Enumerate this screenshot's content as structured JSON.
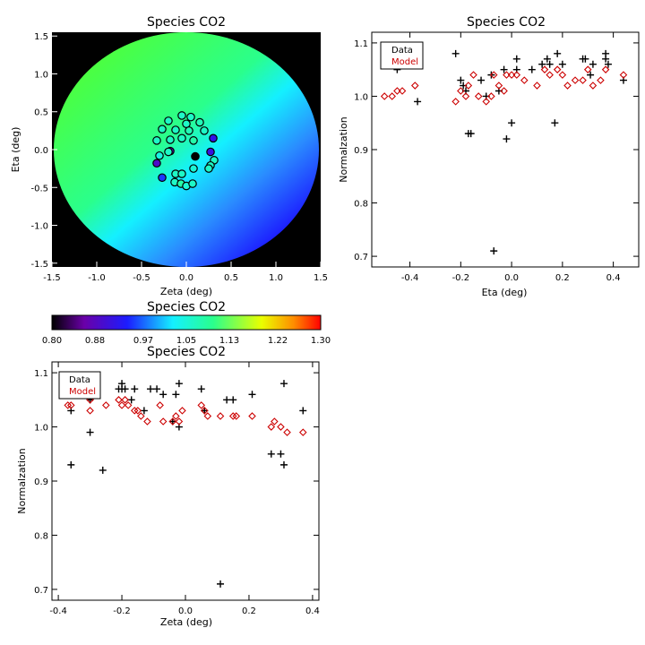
{
  "panels": {
    "map": {
      "title": "Species CO2",
      "xlabel": "Zeta (deg)",
      "ylabel": "Eta (deg)",
      "xlim": [
        -1.5,
        1.5
      ],
      "ylim": [
        -1.55,
        1.55
      ],
      "xticks": [
        "-1.5",
        "-1.0",
        "-0.5",
        "0.0",
        "0.5",
        "1.0",
        "1.5"
      ],
      "yticks": [
        "-1.5",
        "-1.0",
        "-0.5",
        "0.0",
        "0.5",
        "1.0",
        "1.5"
      ],
      "background": "#000000",
      "field_colors": [
        "#1c1cff",
        "#2a8cff",
        "#14f0ff",
        "#2aff8c",
        "#4dff3d"
      ]
    },
    "colorbar": {
      "title": "Species CO2",
      "ticks": [
        "0.80",
        "0.88",
        "0.97",
        "1.05",
        "1.13",
        "1.22",
        "1.30"
      ],
      "range": [
        0.8,
        1.3
      ]
    },
    "eta_scatter": {
      "title": "Species CO2",
      "xlabel": "Eta (deg)",
      "ylabel": "Normalzation",
      "xlim": [
        -0.55,
        0.5
      ],
      "ylim": [
        0.68,
        1.12
      ],
      "xticks": [
        "-0.4",
        "-0.2",
        "0.0",
        "0.2",
        "0.4"
      ],
      "yticks": [
        "0.7",
        "0.8",
        "0.9",
        "1.0",
        "1.1"
      ],
      "legend": {
        "data": "Data",
        "model": "Model",
        "placement": "top-left"
      }
    },
    "zeta_scatter": {
      "title": "Species CO2",
      "xlabel": "Zeta (deg)",
      "ylabel": "Normalzation",
      "xlim": [
        -0.42,
        0.42
      ],
      "ylim": [
        0.68,
        1.12
      ],
      "xticks": [
        "-0.4",
        "-0.2",
        "0.0",
        "0.2",
        "0.4"
      ],
      "yticks": [
        "0.7",
        "0.8",
        "0.9",
        "1.0",
        "1.1"
      ],
      "legend": {
        "data": "Data",
        "model": "Model",
        "placement": "top-left"
      }
    }
  },
  "chart_data": [
    {
      "type": "heatmap",
      "title": "Species CO2",
      "xlabel": "Zeta (deg)",
      "ylabel": "Eta (deg)",
      "xlim": [
        -1.5,
        1.5
      ],
      "ylim": [
        -1.55,
        1.55
      ],
      "colorscale_range": [
        0.8,
        1.3
      ],
      "points": [
        {
          "zeta": -0.05,
          "eta": 0.45,
          "value": 1.06
        },
        {
          "zeta": 0.05,
          "eta": 0.43,
          "value": 1.06
        },
        {
          "zeta": -0.2,
          "eta": 0.38,
          "value": 1.06
        },
        {
          "zeta": 0.15,
          "eta": 0.36,
          "value": 1.07
        },
        {
          "zeta": -0.27,
          "eta": 0.27,
          "value": 1.06
        },
        {
          "zeta": -0.12,
          "eta": 0.26,
          "value": 1.06
        },
        {
          "zeta": 0.0,
          "eta": 0.34,
          "value": 1.06
        },
        {
          "zeta": 0.03,
          "eta": 0.25,
          "value": 1.07
        },
        {
          "zeta": -0.18,
          "eta": 0.13,
          "value": 1.06
        },
        {
          "zeta": -0.05,
          "eta": 0.15,
          "value": 1.06
        },
        {
          "zeta": 0.2,
          "eta": 0.25,
          "value": 1.06
        },
        {
          "zeta": 0.08,
          "eta": 0.12,
          "value": 1.08
        },
        {
          "zeta": -0.33,
          "eta": 0.12,
          "value": 1.06
        },
        {
          "zeta": -0.3,
          "eta": -0.08,
          "value": 1.04
        },
        {
          "zeta": -0.18,
          "eta": -0.02,
          "value": 0.88
        },
        {
          "zeta": 0.3,
          "eta": 0.15,
          "value": 0.92
        },
        {
          "zeta": -0.2,
          "eta": -0.03,
          "value": 1.06
        },
        {
          "zeta": 0.27,
          "eta": -0.03,
          "value": 0.91
        },
        {
          "zeta": 0.1,
          "eta": -0.09,
          "value": 0.71
        },
        {
          "zeta": 0.31,
          "eta": -0.14,
          "value": 1.06
        },
        {
          "zeta": -0.33,
          "eta": -0.18,
          "value": 0.89
        },
        {
          "zeta": 0.27,
          "eta": -0.21,
          "value": 1.06
        },
        {
          "zeta": -0.27,
          "eta": -0.37,
          "value": 0.95
        },
        {
          "zeta": -0.12,
          "eta": -0.32,
          "value": 1.06
        },
        {
          "zeta": -0.05,
          "eta": -0.32,
          "value": 1.06
        },
        {
          "zeta": 0.08,
          "eta": -0.25,
          "value": 1.05
        },
        {
          "zeta": 0.25,
          "eta": -0.25,
          "value": 1.06
        },
        {
          "zeta": -0.13,
          "eta": -0.43,
          "value": 1.06
        },
        {
          "zeta": -0.06,
          "eta": -0.45,
          "value": 1.08
        },
        {
          "zeta": 0.0,
          "eta": -0.48,
          "value": 1.05
        },
        {
          "zeta": 0.07,
          "eta": -0.45,
          "value": 1.06
        }
      ]
    },
    {
      "type": "scatter",
      "title": "Species CO2",
      "xlabel": "Eta (deg)",
      "ylabel": "Normalzation",
      "xlim": [
        -0.55,
        0.5
      ],
      "ylim": [
        0.68,
        1.12
      ],
      "series": [
        {
          "name": "Data",
          "color": "#000000",
          "marker": "plus",
          "x": [
            -0.48,
            -0.45,
            -0.43,
            -0.42,
            -0.37,
            -0.22,
            -0.2,
            -0.19,
            -0.18,
            -0.17,
            -0.16,
            -0.12,
            -0.1,
            -0.08,
            -0.07,
            -0.05,
            -0.03,
            -0.02,
            0.0,
            0.02,
            0.02,
            0.08,
            0.12,
            0.14,
            0.15,
            0.17,
            0.18,
            0.2,
            0.28,
            0.29,
            0.31,
            0.32,
            0.37,
            0.37,
            0.38,
            0.44
          ],
          "y": [
            1.08,
            1.05,
            1.07,
            1.07,
            0.99,
            1.08,
            1.03,
            1.02,
            1.01,
            0.93,
            0.93,
            1.03,
            1.0,
            1.04,
            0.71,
            1.01,
            1.05,
            0.92,
            0.95,
            1.07,
            1.05,
            1.05,
            1.06,
            1.07,
            1.06,
            0.95,
            1.08,
            1.06,
            1.07,
            1.07,
            1.04,
            1.06,
            1.07,
            1.08,
            1.06,
            1.03
          ]
        },
        {
          "name": "Model",
          "color": "#cc0000",
          "marker": "diamond",
          "x": [
            -0.5,
            -0.47,
            -0.45,
            -0.43,
            -0.38,
            -0.22,
            -0.2,
            -0.18,
            -0.17,
            -0.15,
            -0.13,
            -0.1,
            -0.08,
            -0.07,
            -0.05,
            -0.03,
            -0.02,
            0.0,
            0.02,
            0.05,
            0.1,
            0.13,
            0.15,
            0.18,
            0.2,
            0.22,
            0.25,
            0.28,
            0.3,
            0.32,
            0.35,
            0.37,
            0.44
          ],
          "y": [
            1.0,
            1.0,
            1.01,
            1.01,
            1.02,
            0.99,
            1.01,
            1.0,
            1.02,
            1.04,
            1.0,
            0.99,
            1.0,
            1.04,
            1.02,
            1.01,
            1.04,
            1.04,
            1.04,
            1.03,
            1.02,
            1.05,
            1.04,
            1.05,
            1.04,
            1.02,
            1.03,
            1.03,
            1.05,
            1.02,
            1.03,
            1.05,
            1.04
          ]
        }
      ]
    },
    {
      "type": "scatter",
      "title": "Species CO2",
      "xlabel": "Zeta (deg)",
      "ylabel": "Normalzation",
      "xlim": [
        -0.42,
        0.42
      ],
      "ylim": [
        0.68,
        1.12
      ],
      "series": [
        {
          "name": "Data",
          "color": "#000000",
          "marker": "plus",
          "x": [
            -0.36,
            -0.36,
            -0.3,
            -0.3,
            -0.26,
            -0.21,
            -0.2,
            -0.2,
            -0.19,
            -0.17,
            -0.16,
            -0.13,
            -0.11,
            -0.09,
            -0.07,
            -0.04,
            -0.03,
            -0.02,
            -0.02,
            0.05,
            0.06,
            0.11,
            0.13,
            0.15,
            0.21,
            0.27,
            0.3,
            0.31,
            0.31,
            0.37
          ],
          "y": [
            0.93,
            1.03,
            1.05,
            0.99,
            0.92,
            1.07,
            1.08,
            1.07,
            1.07,
            1.05,
            1.07,
            1.03,
            1.07,
            1.07,
            1.06,
            1.01,
            1.06,
            1.08,
            1.0,
            1.07,
            1.03,
            0.71,
            1.05,
            1.05,
            1.06,
            0.95,
            0.95,
            0.93,
            1.08,
            1.03
          ]
        },
        {
          "name": "Model",
          "color": "#cc0000",
          "marker": "diamond",
          "x": [
            -0.37,
            -0.36,
            -0.3,
            -0.3,
            -0.25,
            -0.21,
            -0.2,
            -0.19,
            -0.18,
            -0.16,
            -0.15,
            -0.14,
            -0.12,
            -0.08,
            -0.07,
            -0.04,
            -0.03,
            -0.02,
            -0.01,
            0.05,
            0.06,
            0.07,
            0.11,
            0.15,
            0.16,
            0.21,
            0.27,
            0.28,
            0.3,
            0.32,
            0.37
          ],
          "y": [
            1.04,
            1.04,
            1.05,
            1.03,
            1.04,
            1.05,
            1.04,
            1.05,
            1.04,
            1.03,
            1.03,
            1.02,
            1.01,
            1.04,
            1.01,
            1.01,
            1.02,
            1.01,
            1.03,
            1.04,
            1.03,
            1.02,
            1.02,
            1.02,
            1.02,
            1.02,
            1.0,
            1.01,
            1.0,
            0.99,
            0.99
          ]
        }
      ]
    }
  ]
}
